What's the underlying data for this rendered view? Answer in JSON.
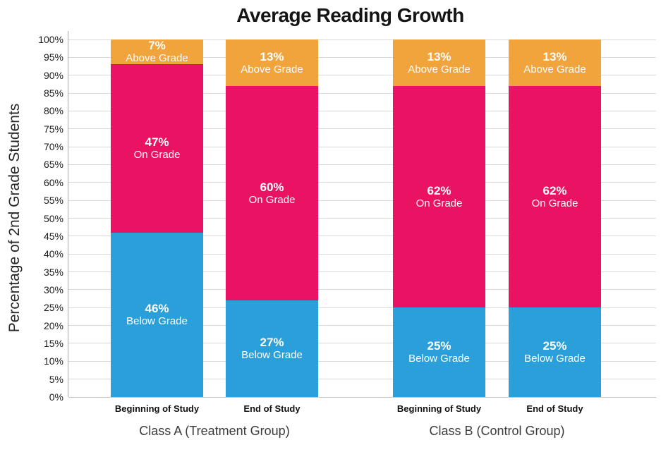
{
  "chart_data": {
    "type": "bar",
    "stacked": true,
    "title": "Average Reading Growth",
    "ylabel": "Percentage of 2nd Grade Students",
    "xlabel": "",
    "ylim": [
      0,
      100
    ],
    "grid": "horizontal",
    "legend": "none (segments labeled inline)",
    "yticks": [
      {
        "value": 0,
        "label": "0%"
      },
      {
        "value": 5,
        "label": "5%"
      },
      {
        "value": 10,
        "label": "10%"
      },
      {
        "value": 15,
        "label": "15%"
      },
      {
        "value": 20,
        "label": "20%"
      },
      {
        "value": 25,
        "label": "25%"
      },
      {
        "value": 30,
        "label": "30%"
      },
      {
        "value": 35,
        "label": "35%"
      },
      {
        "value": 40,
        "label": "40%"
      },
      {
        "value": 45,
        "label": "45%"
      },
      {
        "value": 50,
        "label": "50%"
      },
      {
        "value": 55,
        "label": "55%"
      },
      {
        "value": 60,
        "label": "60%"
      },
      {
        "value": 65,
        "label": "65%"
      },
      {
        "value": 70,
        "label": "70%"
      },
      {
        "value": 75,
        "label": "75%"
      },
      {
        "value": 80,
        "label": "80%"
      },
      {
        "value": 85,
        "label": "85%"
      },
      {
        "value": 90,
        "label": "90%"
      },
      {
        "value": 95,
        "label": "95%"
      },
      {
        "value": 100,
        "label": "100%"
      }
    ],
    "series": [
      {
        "name": "Below Grade",
        "color": "#2B9FD9"
      },
      {
        "name": "On Grade",
        "color": "#EA1262"
      },
      {
        "name": "Above Grade",
        "color": "#F2A43C"
      }
    ],
    "groups": [
      {
        "label": "Class A (Treatment Group)",
        "bars": [
          {
            "category": "Beginning of Study",
            "segments": [
              {
                "series": "Below Grade",
                "value": 46,
                "label": "46%"
              },
              {
                "series": "On Grade",
                "value": 47,
                "label": "47%"
              },
              {
                "series": "Above Grade",
                "value": 7,
                "label": "7%"
              }
            ]
          },
          {
            "category": "End of Study",
            "segments": [
              {
                "series": "Below Grade",
                "value": 27,
                "label": "27%"
              },
              {
                "series": "On Grade",
                "value": 60,
                "label": "60%"
              },
              {
                "series": "Above Grade",
                "value": 13,
                "label": "13%"
              }
            ]
          }
        ]
      },
      {
        "label": "Class B (Control Group)",
        "bars": [
          {
            "category": "Beginning of Study",
            "segments": [
              {
                "series": "Below Grade",
                "value": 25,
                "label": "25%"
              },
              {
                "series": "On Grade",
                "value": 62,
                "label": "62%"
              },
              {
                "series": "Above Grade",
                "value": 13,
                "label": "13%"
              }
            ]
          },
          {
            "category": "End of Study",
            "segments": [
              {
                "series": "Below Grade",
                "value": 25,
                "label": "25%"
              },
              {
                "series": "On Grade",
                "value": 62,
                "label": "62%"
              },
              {
                "series": "Above Grade",
                "value": 13,
                "label": "13%"
              }
            ]
          }
        ]
      }
    ],
    "colors": {
      "background": "#FFFFFF",
      "gridline": "#D9D9D9",
      "baseline": "#C6C6C6",
      "axis_line": "#A6A6A6",
      "segment_text": "#FFFFFF",
      "title_text": "#151515",
      "tick_text": "#1A1A1A",
      "category_text": "#111111",
      "group_text": "#3B3B3B"
    }
  }
}
